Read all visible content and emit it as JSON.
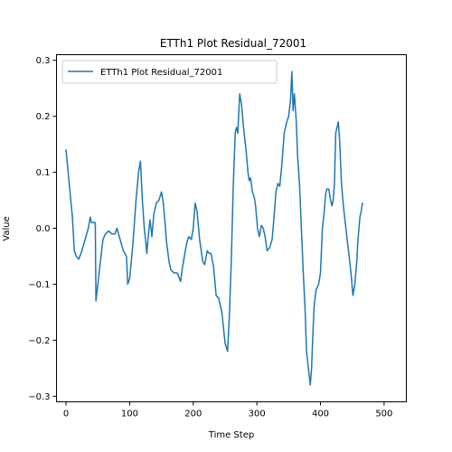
{
  "chart_data": {
    "type": "line",
    "title": "ETTh1 Plot Residual_72001",
    "xlabel": "Time Step",
    "ylabel": "Value",
    "xlim": [
      -15,
      535
    ],
    "ylim": [
      -0.31,
      0.31
    ],
    "xticks": [
      0,
      100,
      200,
      300,
      400,
      500
    ],
    "yticks": [
      -0.3,
      -0.2,
      -0.1,
      0.0,
      0.1,
      0.2,
      0.3
    ],
    "ytick_labels": [
      "−0.3",
      "−0.2",
      "−0.1",
      "0.0",
      "0.1",
      "0.2",
      "0.3"
    ],
    "grid": false,
    "legend": "top-left",
    "line_color": "#1f77b4",
    "series": [
      {
        "name": "ETTh1 Plot Residual_72001",
        "points": [
          [
            0,
            0.14
          ],
          [
            5,
            0.08
          ],
          [
            10,
            0.02
          ],
          [
            13,
            -0.04
          ],
          [
            16,
            -0.05
          ],
          [
            20,
            -0.055
          ],
          [
            25,
            -0.04
          ],
          [
            30,
            -0.02
          ],
          [
            35,
            0.0
          ],
          [
            38,
            0.02
          ],
          [
            40,
            0.01
          ],
          [
            44,
            0.01
          ],
          [
            46,
            0.01
          ],
          [
            47,
            -0.13
          ],
          [
            50,
            -0.1
          ],
          [
            55,
            -0.05
          ],
          [
            58,
            -0.02
          ],
          [
            62,
            -0.01
          ],
          [
            67,
            -0.005
          ],
          [
            72,
            -0.01
          ],
          [
            77,
            -0.01
          ],
          [
            80,
            0.0
          ],
          [
            85,
            -0.02
          ],
          [
            90,
            -0.04
          ],
          [
            95,
            -0.05
          ],
          [
            97,
            -0.1
          ],
          [
            100,
            -0.09
          ],
          [
            105,
            -0.03
          ],
          [
            110,
            0.05
          ],
          [
            114,
            0.1
          ],
          [
            117,
            0.12
          ],
          [
            120,
            0.05
          ],
          [
            123,
            0.0
          ],
          [
            125,
            -0.02
          ],
          [
            127,
            -0.045
          ],
          [
            130,
            -0.005
          ],
          [
            132,
            0.015
          ],
          [
            135,
            -0.015
          ],
          [
            138,
            0.025
          ],
          [
            142,
            0.045
          ],
          [
            146,
            0.05
          ],
          [
            150,
            0.065
          ],
          [
            153,
            0.045
          ],
          [
            156,
            0.005
          ],
          [
            158,
            -0.025
          ],
          [
            162,
            -0.06
          ],
          [
            165,
            -0.075
          ],
          [
            170,
            -0.08
          ],
          [
            175,
            -0.08
          ],
          [
            180,
            -0.095
          ],
          [
            183,
            -0.07
          ],
          [
            186,
            -0.05
          ],
          [
            190,
            -0.025
          ],
          [
            193,
            -0.015
          ],
          [
            197,
            -0.02
          ],
          [
            200,
            0.0
          ],
          [
            203,
            0.045
          ],
          [
            206,
            0.03
          ],
          [
            210,
            -0.02
          ],
          [
            215,
            -0.06
          ],
          [
            218,
            -0.065
          ],
          [
            222,
            -0.04
          ],
          [
            225,
            -0.045
          ],
          [
            228,
            -0.045
          ],
          [
            232,
            -0.07
          ],
          [
            236,
            -0.12
          ],
          [
            240,
            -0.125
          ],
          [
            245,
            -0.15
          ],
          [
            250,
            -0.205
          ],
          [
            254,
            -0.22
          ],
          [
            257,
            -0.15
          ],
          [
            260,
            -0.05
          ],
          [
            263,
            0.08
          ],
          [
            266,
            0.17
          ],
          [
            268,
            0.18
          ],
          [
            270,
            0.17
          ],
          [
            273,
            0.24
          ],
          [
            276,
            0.22
          ],
          [
            279,
            0.18
          ],
          [
            283,
            0.14
          ],
          [
            286,
            0.1
          ],
          [
            288,
            0.085
          ],
          [
            290,
            0.09
          ],
          [
            293,
            0.065
          ],
          [
            296,
            0.055
          ],
          [
            298,
            0.04
          ],
          [
            301,
            0.0
          ],
          [
            304,
            -0.015
          ],
          [
            307,
            0.005
          ],
          [
            310,
            0.0
          ],
          [
            313,
            -0.015
          ],
          [
            316,
            -0.04
          ],
          [
            320,
            -0.035
          ],
          [
            324,
            -0.02
          ],
          [
            327,
            0.02
          ],
          [
            330,
            0.065
          ],
          [
            333,
            0.08
          ],
          [
            336,
            0.075
          ],
          [
            339,
            0.11
          ],
          [
            343,
            0.17
          ],
          [
            347,
            0.19
          ],
          [
            350,
            0.2
          ],
          [
            353,
            0.23
          ],
          [
            355,
            0.28
          ],
          [
            357,
            0.21
          ],
          [
            359,
            0.24
          ],
          [
            362,
            0.19
          ],
          [
            364,
            0.13
          ],
          [
            367,
            0.08
          ],
          [
            370,
            0.0
          ],
          [
            373,
            -0.08
          ],
          [
            376,
            -0.15
          ],
          [
            378,
            -0.22
          ],
          [
            380,
            -0.24
          ],
          [
            382,
            -0.26
          ],
          [
            384,
            -0.28
          ],
          [
            386,
            -0.25
          ],
          [
            388,
            -0.19
          ],
          [
            390,
            -0.14
          ],
          [
            393,
            -0.11
          ],
          [
            397,
            -0.1
          ],
          [
            400,
            -0.08
          ],
          [
            403,
            0.0
          ],
          [
            406,
            0.03
          ],
          [
            408,
            0.06
          ],
          [
            410,
            0.07
          ],
          [
            413,
            0.07
          ],
          [
            416,
            0.05
          ],
          [
            418,
            0.04
          ],
          [
            420,
            0.05
          ],
          [
            422,
            0.08
          ],
          [
            424,
            0.17
          ],
          [
            426,
            0.18
          ],
          [
            428,
            0.19
          ],
          [
            430,
            0.16
          ],
          [
            433,
            0.08
          ],
          [
            436,
            0.04
          ],
          [
            440,
            0.0
          ],
          [
            444,
            -0.04
          ],
          [
            448,
            -0.08
          ],
          [
            451,
            -0.12
          ],
          [
            454,
            -0.1
          ],
          [
            457,
            -0.06
          ],
          [
            459,
            -0.02
          ],
          [
            462,
            0.02
          ],
          [
            464,
            0.03
          ],
          [
            466,
            0.045
          ]
        ]
      }
    ]
  }
}
